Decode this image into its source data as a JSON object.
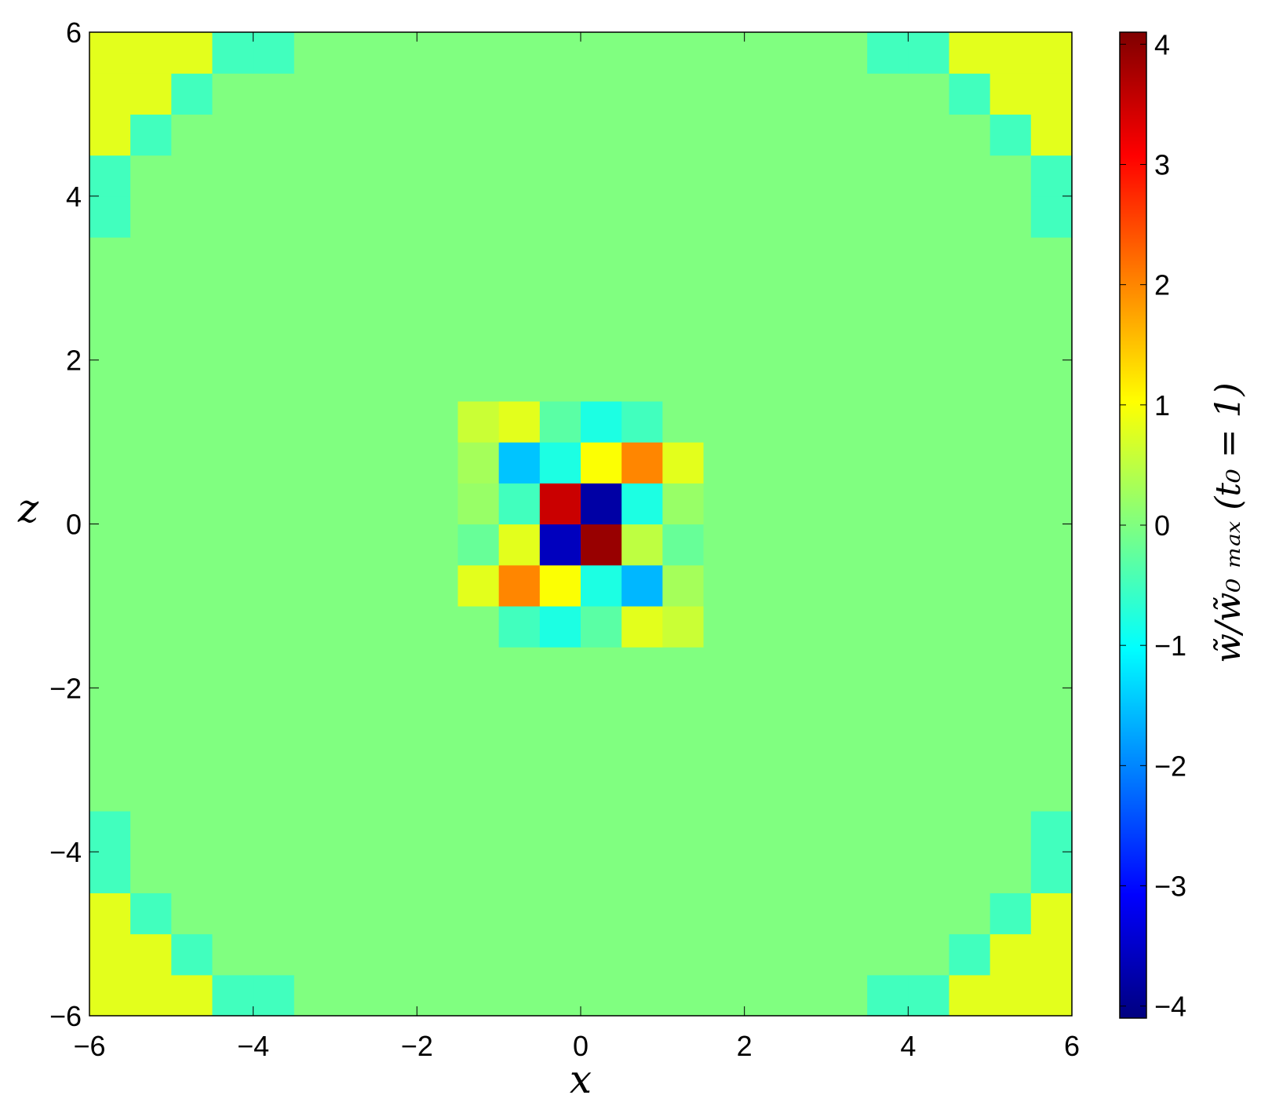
{
  "chart_data": {
    "type": "heatmap",
    "x_label": "x",
    "y_label": "z",
    "colorbar_label": "w̃/w̃₀ ₘₐₓ  (t₀ = 1)",
    "colormap": "jet",
    "clim": [
      -4.1,
      4.1
    ],
    "xlim": [
      -6,
      6
    ],
    "ylim": [
      -6,
      6
    ],
    "xticks": [
      {
        "value": -6,
        "label": "−6"
      },
      {
        "value": -4,
        "label": "−4"
      },
      {
        "value": -2,
        "label": "−2"
      },
      0,
      2,
      4,
      6
    ],
    "yticks": [
      {
        "value": -6,
        "label": "−6"
      },
      {
        "value": -4,
        "label": "−4"
      },
      {
        "value": -2,
        "label": "−2"
      },
      0,
      2,
      4,
      6
    ],
    "cticks": [
      {
        "value": -4,
        "label": "−4"
      },
      {
        "value": -3,
        "label": "−3"
      },
      {
        "value": -2,
        "label": "−2"
      },
      {
        "value": -1,
        "label": "−1"
      },
      0,
      1,
      2,
      3,
      4
    ],
    "x_edges": [
      -6,
      -5.5,
      -5,
      -4.5,
      -4,
      -3.5,
      -3,
      -2.5,
      -2,
      -1.5,
      -1,
      -0.5,
      0,
      0.5,
      1,
      1.5,
      2,
      2.5,
      3,
      3.5,
      4,
      4.5,
      5,
      5.5,
      6
    ],
    "y_edges": [
      -6,
      -5.5,
      -5,
      -4.5,
      -4,
      -3.5,
      -3,
      -2.5,
      -2,
      -1.5,
      -1,
      -0.5,
      0,
      0.5,
      1,
      1.5,
      2,
      2.5,
      3,
      3.5,
      4,
      4.5,
      5,
      5.5,
      6
    ],
    "values": [
      [
        0.8,
        0.8,
        0.8,
        -0.5,
        -0.5,
        0,
        0,
        0,
        0,
        0,
        0,
        0,
        0,
        0,
        0,
        0,
        0,
        0,
        0,
        -0.5,
        -0.5,
        0.8,
        0.8,
        0.8
      ],
      [
        0.8,
        0.8,
        -0.5,
        0,
        0,
        0,
        0,
        0,
        0,
        0,
        0,
        0,
        0,
        0,
        0,
        0,
        0,
        0,
        0,
        0,
        0,
        -0.5,
        0.8,
        0.8
      ],
      [
        0.8,
        -0.5,
        0,
        0,
        0,
        0,
        0,
        0,
        0,
        0,
        0,
        0,
        0,
        0,
        0,
        0,
        0,
        0,
        0,
        0,
        0,
        0,
        -0.5,
        0.8
      ],
      [
        -0.5,
        0,
        0,
        0,
        0,
        0,
        0,
        0,
        0,
        0,
        0,
        0,
        0,
        0,
        0,
        0,
        0,
        0,
        0,
        0,
        0,
        0,
        0,
        -0.5
      ],
      [
        -0.5,
        0,
        0,
        0,
        0,
        0,
        0,
        0,
        0,
        0,
        0,
        0,
        0,
        0,
        0,
        0,
        0,
        0,
        0,
        0,
        0,
        0,
        0,
        -0.5
      ],
      [
        0,
        0,
        0,
        0,
        0,
        0,
        0,
        0,
        0,
        0,
        0,
        0,
        0,
        0,
        0,
        0,
        0,
        0,
        0,
        0,
        0,
        0,
        0,
        0
      ],
      [
        0,
        0,
        0,
        0,
        0,
        0,
        0,
        0,
        0,
        0,
        0,
        0,
        0,
        0,
        0,
        0,
        0,
        0,
        0,
        0,
        0,
        0,
        0,
        0
      ],
      [
        0,
        0,
        0,
        0,
        0,
        0,
        0,
        0,
        0,
        0,
        0,
        0,
        0,
        0,
        0,
        0,
        0,
        0,
        0,
        0,
        0,
        0,
        0,
        0
      ],
      [
        0,
        0,
        0,
        0,
        0,
        0,
        0,
        0,
        0,
        0,
        0,
        0,
        0,
        0,
        0,
        0,
        0,
        0,
        0,
        0,
        0,
        0,
        0,
        0
      ],
      [
        0,
        0,
        0,
        0,
        0,
        0,
        0,
        0,
        0,
        0,
        -0.5,
        -0.8,
        -0.3,
        0.8,
        0.6,
        0,
        0,
        0,
        0,
        0,
        0,
        0,
        0,
        0
      ],
      [
        0,
        0,
        0,
        0,
        0,
        0,
        0,
        0,
        0,
        0.8,
        2.0,
        1.0,
        -0.8,
        -1.6,
        0.3,
        0,
        0,
        0,
        0,
        0,
        0,
        0,
        0,
        0
      ],
      [
        0,
        0,
        0,
        0,
        0,
        0,
        0,
        0,
        0,
        -0.2,
        0.8,
        -3.6,
        3.9,
        0.5,
        -0.2,
        0,
        0,
        0,
        0,
        0,
        0,
        0,
        0,
        0
      ],
      [
        0,
        0,
        0,
        0,
        0,
        0,
        0,
        0,
        0,
        0.2,
        -0.5,
        3.5,
        -3.8,
        -0.8,
        0.2,
        0,
        0,
        0,
        0,
        0,
        0,
        0,
        0,
        0
      ],
      [
        0,
        0,
        0,
        0,
        0,
        0,
        0,
        0,
        0,
        0.3,
        -1.5,
        -0.8,
        1.0,
        2.0,
        0.8,
        0,
        0,
        0,
        0,
        0,
        0,
        0,
        0,
        0
      ],
      [
        0,
        0,
        0,
        0,
        0,
        0,
        0,
        0,
        0,
        0.6,
        0.8,
        -0.3,
        -0.8,
        -0.5,
        0,
        0,
        0,
        0,
        0,
        0,
        0,
        0,
        0,
        0
      ],
      [
        0,
        0,
        0,
        0,
        0,
        0,
        0,
        0,
        0,
        0,
        0,
        0,
        0,
        0,
        0,
        0,
        0,
        0,
        0,
        0,
        0,
        0,
        0,
        0
      ],
      [
        0,
        0,
        0,
        0,
        0,
        0,
        0,
        0,
        0,
        0,
        0,
        0,
        0,
        0,
        0,
        0,
        0,
        0,
        0,
        0,
        0,
        0,
        0,
        0
      ],
      [
        0,
        0,
        0,
        0,
        0,
        0,
        0,
        0,
        0,
        0,
        0,
        0,
        0,
        0,
        0,
        0,
        0,
        0,
        0,
        0,
        0,
        0,
        0,
        0
      ],
      [
        0,
        0,
        0,
        0,
        0,
        0,
        0,
        0,
        0,
        0,
        0,
        0,
        0,
        0,
        0,
        0,
        0,
        0,
        0,
        0,
        0,
        0,
        0,
        0
      ],
      [
        -0.5,
        0,
        0,
        0,
        0,
        0,
        0,
        0,
        0,
        0,
        0,
        0,
        0,
        0,
        0,
        0,
        0,
        0,
        0,
        0,
        0,
        0,
        0,
        -0.5
      ],
      [
        -0.5,
        0,
        0,
        0,
        0,
        0,
        0,
        0,
        0,
        0,
        0,
        0,
        0,
        0,
        0,
        0,
        0,
        0,
        0,
        0,
        0,
        0,
        0,
        -0.5
      ],
      [
        0.8,
        -0.5,
        0,
        0,
        0,
        0,
        0,
        0,
        0,
        0,
        0,
        0,
        0,
        0,
        0,
        0,
        0,
        0,
        0,
        0,
        0,
        0,
        -0.5,
        0.8
      ],
      [
        0.8,
        0.8,
        -0.5,
        0,
        0,
        0,
        0,
        0,
        0,
        0,
        0,
        0,
        0,
        0,
        0,
        0,
        0,
        0,
        0,
        0,
        0,
        -0.5,
        0.8,
        0.8
      ],
      [
        0.8,
        0.8,
        0.8,
        -0.5,
        -0.5,
        0,
        0,
        0,
        0,
        0,
        0,
        0,
        0,
        0,
        0,
        0,
        0,
        0,
        0,
        -0.5,
        -0.5,
        0.8,
        0.8,
        0.8
      ]
    ]
  }
}
